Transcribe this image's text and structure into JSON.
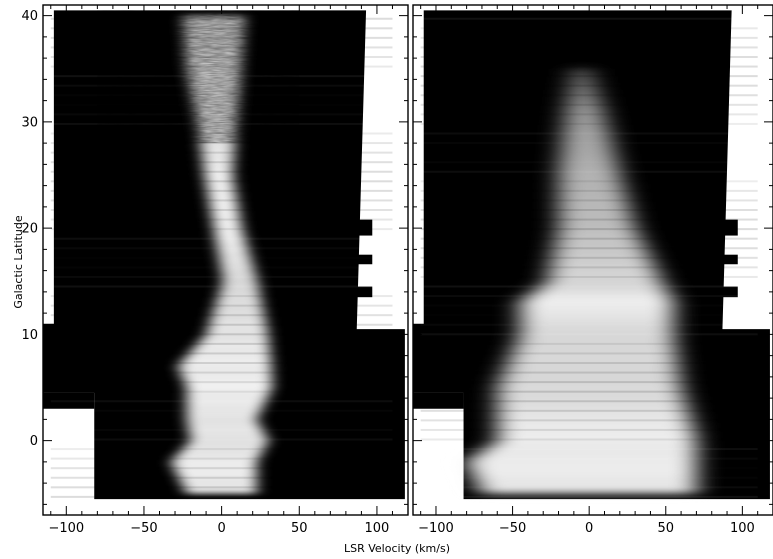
{
  "chart_data": [
    {
      "type": "heatmap",
      "panel": "left",
      "title": "",
      "xlabel": "LSR Velocity (km/s)",
      "ylabel": "Galactic Latitude",
      "xlim": [
        -115,
        120
      ],
      "ylim": [
        -7,
        41
      ],
      "xticks": [
        -100,
        -50,
        0,
        50,
        100
      ],
      "yticks": [
        0,
        10,
        20,
        30,
        40
      ],
      "colormap": "grayscale",
      "emission_ridge": [
        {
          "b": 40,
          "center_v": -5,
          "width_v": 40,
          "intensity": 0.8
        },
        {
          "b": 35,
          "center_v": -5,
          "width_v": 35,
          "intensity": 0.85
        },
        {
          "b": 30,
          "center_v": -3,
          "width_v": 25,
          "intensity": 0.85
        },
        {
          "b": 25,
          "center_v": -2,
          "width_v": 18,
          "intensity": 0.95
        },
        {
          "b": 20,
          "center_v": 4,
          "width_v": 18,
          "intensity": 0.95
        },
        {
          "b": 15,
          "center_v": 12,
          "width_v": 22,
          "intensity": 0.85
        },
        {
          "b": 10,
          "center_v": 10,
          "width_v": 40,
          "intensity": 0.9
        },
        {
          "b": 7,
          "center_v": 2,
          "width_v": 60,
          "intensity": 0.95
        },
        {
          "b": 5,
          "center_v": 5,
          "width_v": 55,
          "intensity": 0.95
        },
        {
          "b": 2,
          "center_v": 0,
          "width_v": 45,
          "intensity": 0.9
        },
        {
          "b": 0,
          "center_v": 5,
          "width_v": 50,
          "intensity": 0.9
        },
        {
          "b": -2,
          "center_v": -5,
          "width_v": 55,
          "intensity": 0.95
        },
        {
          "b": -5,
          "center_v": 0,
          "width_v": 45,
          "intensity": 0.9
        }
      ]
    },
    {
      "type": "heatmap",
      "panel": "right",
      "title": "",
      "xlabel": "LSR Velocity (km/s)",
      "ylabel": "",
      "xlim": [
        -115,
        120
      ],
      "ylim": [
        -7,
        41
      ],
      "xticks": [
        -100,
        -50,
        0,
        50,
        100
      ],
      "yticks": [
        0,
        10,
        20,
        30,
        40
      ],
      "colormap": "grayscale",
      "emission_ridge": [
        {
          "b": 35,
          "center_v": -5,
          "width_v": 12,
          "intensity": 0.35
        },
        {
          "b": 31,
          "center_v": -3,
          "width_v": 25,
          "intensity": 0.6
        },
        {
          "b": 25,
          "center_v": 0,
          "width_v": 40,
          "intensity": 0.7
        },
        {
          "b": 20,
          "center_v": 5,
          "width_v": 50,
          "intensity": 0.75
        },
        {
          "b": 15,
          "center_v": 10,
          "width_v": 75,
          "intensity": 0.85
        },
        {
          "b": 13,
          "center_v": 5,
          "width_v": 100,
          "intensity": 0.95
        },
        {
          "b": 10,
          "center_v": 5,
          "width_v": 100,
          "intensity": 0.85
        },
        {
          "b": 5,
          "center_v": 0,
          "width_v": 120,
          "intensity": 0.85
        },
        {
          "b": 0,
          "center_v": 5,
          "width_v": 130,
          "intensity": 0.95
        },
        {
          "b": -2,
          "center_v": -5,
          "width_v": 150,
          "intensity": 0.95
        },
        {
          "b": -5,
          "center_v": 0,
          "width_v": 140,
          "intensity": 0.9
        }
      ]
    }
  ]
}
